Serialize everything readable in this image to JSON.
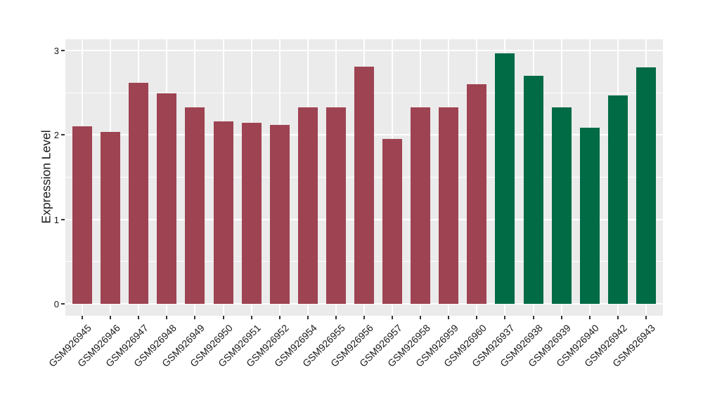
{
  "figure": {
    "background": "#FFFFFF",
    "panel_background": "#EBEBEB",
    "grid_color": "#FFFFFF",
    "tick_color": "#333333",
    "text_color": "#1A1A1A"
  },
  "chart_data": {
    "type": "bar",
    "title": "",
    "xlabel": "",
    "ylabel": "Expression Level",
    "ylim": [
      -0.15,
      3.15
    ],
    "yticks": [
      0,
      1,
      2,
      3
    ],
    "minor_yticks": [
      0.5,
      1.5,
      2.5
    ],
    "grid": true,
    "legend_position": "none",
    "categories": [
      "GSM926945",
      "GSM926946",
      "GSM926947",
      "GSM926948",
      "GSM926949",
      "GSM926950",
      "GSM926951",
      "GSM926952",
      "GSM926954",
      "GSM926955",
      "GSM926956",
      "GSM926957",
      "GSM926958",
      "GSM926959",
      "GSM926960",
      "GSM926937",
      "GSM926938",
      "GSM926939",
      "GSM926940",
      "GSM926942",
      "GSM926943"
    ],
    "values": [
      2.1,
      2.04,
      2.62,
      2.49,
      2.33,
      2.16,
      2.14,
      2.12,
      2.33,
      2.33,
      2.81,
      1.95,
      2.33,
      2.33,
      2.6,
      2.97,
      2.7,
      2.33,
      2.09,
      2.47,
      2.8
    ],
    "bar_groups": [
      "red",
      "red",
      "red",
      "red",
      "red",
      "red",
      "red",
      "red",
      "red",
      "red",
      "red",
      "red",
      "red",
      "red",
      "red",
      "green",
      "green",
      "green",
      "green",
      "green",
      "green"
    ],
    "group_colors": {
      "red": "#9E4352",
      "green": "#016B46"
    }
  }
}
